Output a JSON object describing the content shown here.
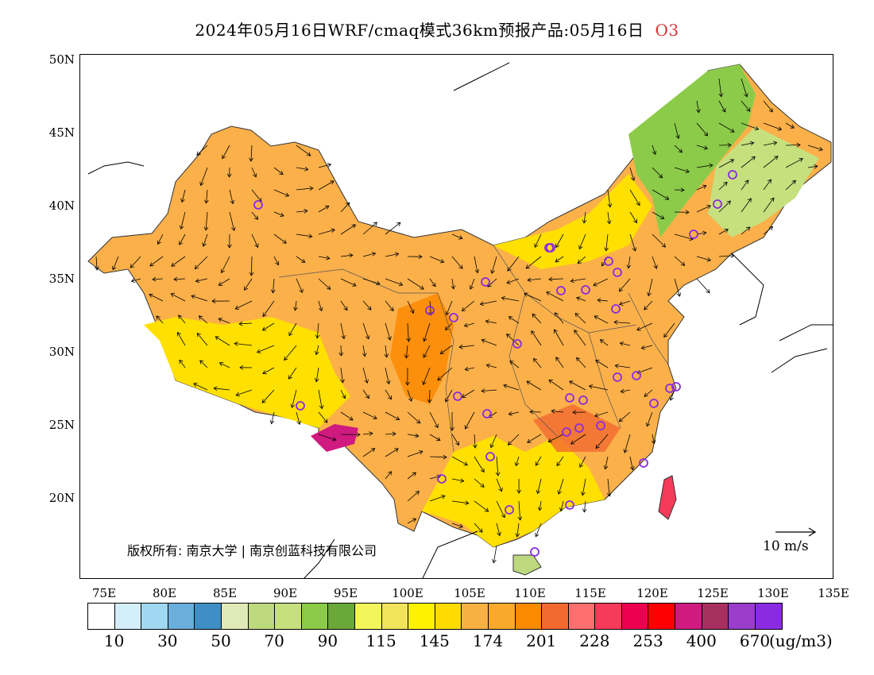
{
  "title": {
    "text": "2024年05月16日WRF/cmaq模式36km预报产品:05月16日",
    "tag": "O3"
  },
  "axes": {
    "y_ticks": [
      "50N",
      "45N",
      "40N",
      "35N",
      "30N",
      "25N",
      "20N"
    ],
    "x_ticks": [
      "75E",
      "80E",
      "85E",
      "90E",
      "95E",
      "100E",
      "105E",
      "110E",
      "115E",
      "120E",
      "125E",
      "130E",
      "135E"
    ]
  },
  "copyright": "版权所有: 南京大学 | 南京创蓝科技有限公司",
  "wind_reference": "10 m/s",
  "legend": {
    "colors": [
      "#ffffff",
      "#d4eefa",
      "#a0d8f2",
      "#6aaedc",
      "#3f8ec4",
      "#dfeab8",
      "#bdd97e",
      "#c6e07e",
      "#8ccb4a",
      "#6aa83a",
      "#f2f65a",
      "#f2e45a",
      "#fff200",
      "#ffdc00",
      "#f7b142",
      "#fba92a",
      "#fb8a00",
      "#f26a30",
      "#ff6f6f",
      "#f53a5a",
      "#ee0050",
      "#ff0000",
      "#d01a80",
      "#a83060",
      "#9a3ccc",
      "#8a2be2"
    ],
    "labels": [
      "10",
      "30",
      "50",
      "70",
      "90",
      "115",
      "145",
      "174",
      "201",
      "228",
      "253",
      "400",
      "670"
    ],
    "unit": "(ug/m3)"
  },
  "stations_count_visible": 34
}
